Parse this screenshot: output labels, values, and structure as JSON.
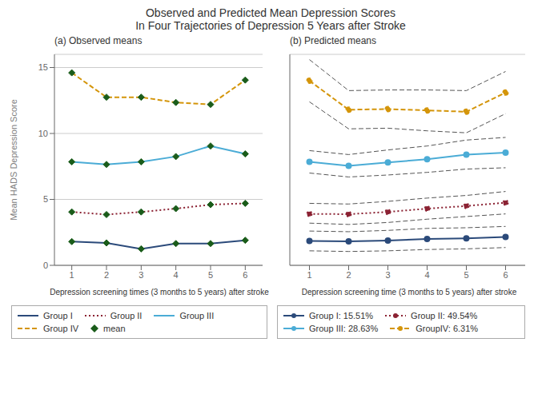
{
  "chart_data": [
    {
      "type": "line",
      "title": "Observed and Predicted Mean Depression Scores",
      "subtitle": "In Four Trajectories of Depression 5 Years after Stroke",
      "panel_title": "(a) Observed means",
      "x_label": "Depression screening times (3 months to 5 years) after stroke",
      "y_label": "Mean HADS Depression Score",
      "x": [
        1,
        2,
        3,
        4,
        5,
        6
      ],
      "xlim": [
        0.5,
        6.5
      ],
      "xticks": [
        1,
        2,
        3,
        4,
        5,
        6
      ],
      "ylim": [
        0,
        16
      ],
      "yticks": [
        0,
        5,
        10,
        15
      ],
      "grid": true,
      "mean_marker": {
        "name": "mean",
        "marker": "diamond",
        "color": "#1a5c1a"
      },
      "series": [
        {
          "name": "Group I",
          "color": "#2b4a7a",
          "line_style": "solid",
          "values": [
            1.8,
            1.7,
            1.25,
            1.65,
            1.65,
            1.9
          ]
        },
        {
          "name": "Group II",
          "color": "#8b2233",
          "line_style": "dotted",
          "values": [
            4.05,
            3.85,
            4.05,
            4.3,
            4.6,
            4.7
          ]
        },
        {
          "name": "Group III",
          "color": "#4bacd6",
          "line_style": "solid",
          "values": [
            7.85,
            7.65,
            7.85,
            8.25,
            9.05,
            8.45
          ]
        },
        {
          "name": "Group IV",
          "color": "#d4950a",
          "line_style": "dashed",
          "values": [
            14.6,
            12.75,
            12.75,
            12.35,
            12.2,
            14.05
          ]
        }
      ]
    },
    {
      "type": "line",
      "panel_title": "(b) Predicted means",
      "x_label": "Depression screening time (3 months to 5 years) after stroke",
      "x": [
        1,
        2,
        3,
        4,
        5,
        6
      ],
      "xlim": [
        0.5,
        6.5
      ],
      "xticks": [
        1,
        2,
        3,
        4,
        5,
        6
      ],
      "ylim": [
        0,
        16
      ],
      "yticks": [
        0,
        5,
        10,
        15
      ],
      "grid": true,
      "tick_labels": "x",
      "ci_style": {
        "color": "#555555",
        "line_style": "dashed"
      },
      "series": [
        {
          "name": "Group I: 15.51%",
          "color": "#2b4a7a",
          "line_style": "solid",
          "marker": "circle",
          "values": [
            1.85,
            1.82,
            1.88,
            2.0,
            2.05,
            2.15
          ],
          "ci_low": [
            1.1,
            1.05,
            1.1,
            1.2,
            1.25,
            1.35
          ],
          "ci_high": [
            2.6,
            2.55,
            2.65,
            2.8,
            2.85,
            2.95
          ]
        },
        {
          "name": "Group II: 49.54%",
          "color": "#8b2233",
          "line_style": "dotted",
          "marker": "circle",
          "values": [
            3.9,
            3.88,
            4.05,
            4.3,
            4.5,
            4.75
          ],
          "ci_low": [
            3.2,
            3.1,
            3.25,
            3.5,
            3.7,
            3.9
          ],
          "ci_high": [
            4.7,
            4.65,
            4.85,
            5.1,
            5.3,
            5.6
          ]
        },
        {
          "name": "Group III: 28.63%",
          "color": "#4bacd6",
          "line_style": "solid",
          "marker": "circle",
          "values": [
            7.85,
            7.55,
            7.8,
            8.05,
            8.4,
            8.55
          ],
          "ci_low": [
            7.0,
            6.7,
            6.85,
            7.05,
            7.3,
            7.4
          ],
          "ci_high": [
            8.7,
            8.4,
            8.75,
            9.05,
            9.5,
            9.7
          ]
        },
        {
          "name": "GroupIV: 6.31%",
          "color": "#d4950a",
          "line_style": "dashed",
          "marker": "circle",
          "values": [
            14.0,
            11.8,
            11.85,
            11.75,
            11.65,
            13.1
          ],
          "ci_low": [
            12.4,
            10.35,
            10.4,
            10.2,
            10.05,
            11.5
          ],
          "ci_high": [
            15.6,
            13.25,
            13.3,
            13.3,
            13.25,
            14.7
          ]
        }
      ]
    }
  ]
}
